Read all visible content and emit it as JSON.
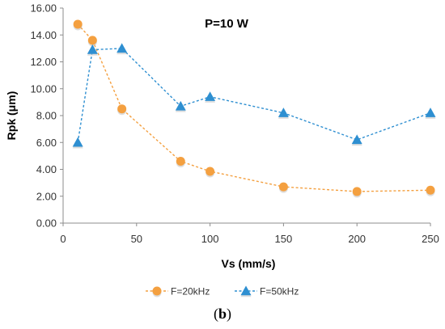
{
  "chart_data": {
    "type": "line",
    "title": "P=10 W",
    "xlabel": "Vs (mm/s)",
    "ylabel": "Rpk (μm)",
    "xlim": [
      0,
      250
    ],
    "ylim": [
      0,
      16
    ],
    "xticks": [
      "0",
      "50",
      "100",
      "150",
      "200",
      "250"
    ],
    "yticks": [
      "0.00",
      "2.00",
      "4.00",
      "6.00",
      "8.00",
      "10.00",
      "12.00",
      "14.00",
      "16.00"
    ],
    "grid": false,
    "legend_position": "bottom",
    "series": [
      {
        "name": "F=20kHz",
        "marker": "circle",
        "color": "#f4a040",
        "x": [
          10,
          20,
          40,
          80,
          100,
          150,
          200,
          250
        ],
        "y": [
          14.8,
          13.6,
          8.5,
          4.6,
          3.85,
          2.7,
          2.35,
          2.45
        ]
      },
      {
        "name": "F=50kHz",
        "marker": "triangle",
        "color": "#2e8fd1",
        "x": [
          10,
          20,
          40,
          80,
          100,
          150,
          200,
          250
        ],
        "y": [
          6.0,
          12.9,
          13.0,
          8.7,
          9.4,
          8.2,
          6.2,
          8.2
        ]
      }
    ]
  },
  "caption": {
    "open": "(",
    "letter": "b",
    "close": ")"
  }
}
